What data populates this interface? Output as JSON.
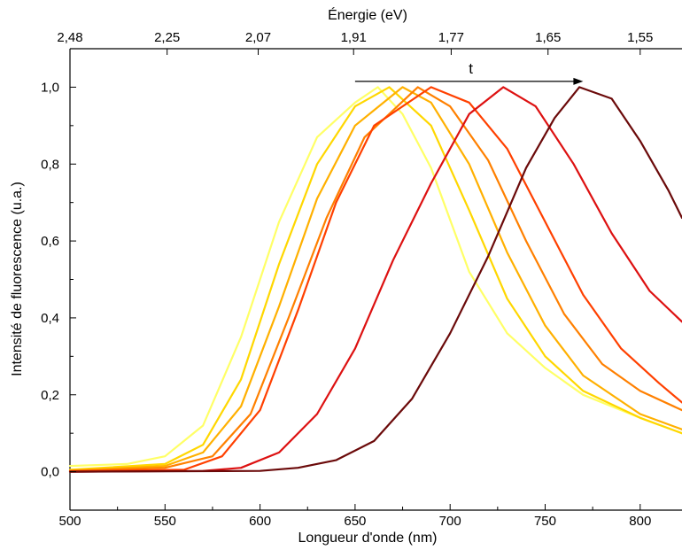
{
  "chart_data": {
    "type": "line",
    "title": "",
    "xlabel": "Longueur d'onde (nm)",
    "ylabel": "Intensité de fluorescence (u.a.)",
    "top_axis_label": "Énergie (eV)",
    "xlim": [
      500,
      822
    ],
    "ylim": [
      -0.1,
      1.1
    ],
    "x_ticks": [
      500,
      550,
      600,
      650,
      700,
      750,
      800
    ],
    "x_tick_labels": [
      "500",
      "550",
      "600",
      "650",
      "700",
      "750",
      "800"
    ],
    "y_ticks": [
      0.0,
      0.2,
      0.4,
      0.6,
      0.8,
      1.0
    ],
    "y_tick_labels": [
      "0,0",
      "0,2",
      "0,4",
      "0,6",
      "0,8",
      "1,0"
    ],
    "top_ticks": [
      2.48,
      2.25,
      2.07,
      1.91,
      1.77,
      1.65,
      1.55
    ],
    "top_tick_labels": [
      "2,48",
      "2,25",
      "2,07",
      "1,91",
      "1,77",
      "1,65",
      "1,55"
    ],
    "grid": false,
    "annotation": {
      "text": "t",
      "arrow_from_x": 650,
      "arrow_to_x": 770,
      "arrow_y": 1.015
    },
    "series": [
      {
        "color": "#ffff66",
        "peak": 662,
        "values": [
          [
            500,
            0.015
          ],
          [
            530,
            0.02
          ],
          [
            550,
            0.04
          ],
          [
            570,
            0.12
          ],
          [
            590,
            0.35
          ],
          [
            610,
            0.65
          ],
          [
            630,
            0.87
          ],
          [
            650,
            0.96
          ],
          [
            662,
            1.0
          ],
          [
            675,
            0.93
          ],
          [
            690,
            0.79
          ],
          [
            710,
            0.52
          ],
          [
            730,
            0.36
          ],
          [
            750,
            0.27
          ],
          [
            770,
            0.2
          ],
          [
            800,
            0.14
          ],
          [
            822,
            0.1
          ]
        ]
      },
      {
        "color": "#ffd700",
        "peak": 668,
        "values": [
          [
            500,
            0.005
          ],
          [
            550,
            0.02
          ],
          [
            570,
            0.07
          ],
          [
            590,
            0.24
          ],
          [
            610,
            0.54
          ],
          [
            630,
            0.8
          ],
          [
            650,
            0.95
          ],
          [
            668,
            1.0
          ],
          [
            690,
            0.9
          ],
          [
            710,
            0.68
          ],
          [
            730,
            0.45
          ],
          [
            750,
            0.3
          ],
          [
            770,
            0.21
          ],
          [
            800,
            0.14
          ],
          [
            822,
            0.1
          ]
        ]
      },
      {
        "color": "#ffb000",
        "peak": 675,
        "values": [
          [
            500,
            0.003
          ],
          [
            550,
            0.015
          ],
          [
            570,
            0.05
          ],
          [
            590,
            0.17
          ],
          [
            610,
            0.43
          ],
          [
            630,
            0.71
          ],
          [
            650,
            0.9
          ],
          [
            675,
            1.0
          ],
          [
            690,
            0.96
          ],
          [
            710,
            0.8
          ],
          [
            730,
            0.57
          ],
          [
            750,
            0.38
          ],
          [
            770,
            0.25
          ],
          [
            800,
            0.15
          ],
          [
            822,
            0.11
          ]
        ]
      },
      {
        "color": "#ff8000",
        "peak": 683,
        "values": [
          [
            500,
            0.002
          ],
          [
            550,
            0.01
          ],
          [
            575,
            0.04
          ],
          [
            595,
            0.15
          ],
          [
            615,
            0.4
          ],
          [
            635,
            0.66
          ],
          [
            655,
            0.87
          ],
          [
            683,
            1.0
          ],
          [
            700,
            0.95
          ],
          [
            720,
            0.81
          ],
          [
            740,
            0.6
          ],
          [
            760,
            0.41
          ],
          [
            780,
            0.28
          ],
          [
            800,
            0.21
          ],
          [
            822,
            0.16
          ]
        ]
      },
      {
        "color": "#ff4000",
        "peak": 690,
        "values": [
          [
            500,
            0.001
          ],
          [
            560,
            0.005
          ],
          [
            580,
            0.04
          ],
          [
            600,
            0.16
          ],
          [
            620,
            0.42
          ],
          [
            640,
            0.7
          ],
          [
            660,
            0.9
          ],
          [
            690,
            1.0
          ],
          [
            710,
            0.96
          ],
          [
            730,
            0.84
          ],
          [
            750,
            0.65
          ],
          [
            770,
            0.46
          ],
          [
            790,
            0.32
          ],
          [
            810,
            0.23
          ],
          [
            822,
            0.18
          ]
        ]
      },
      {
        "color": "#dd1111",
        "peak": 728,
        "values": [
          [
            500,
            0.0
          ],
          [
            570,
            0.002
          ],
          [
            590,
            0.01
          ],
          [
            610,
            0.05
          ],
          [
            630,
            0.15
          ],
          [
            650,
            0.32
          ],
          [
            670,
            0.55
          ],
          [
            690,
            0.75
          ],
          [
            710,
            0.93
          ],
          [
            728,
            1.0
          ],
          [
            745,
            0.95
          ],
          [
            765,
            0.8
          ],
          [
            785,
            0.62
          ],
          [
            805,
            0.47
          ],
          [
            822,
            0.39
          ]
        ]
      },
      {
        "color": "#6b0a0a",
        "peak": 768,
        "values": [
          [
            500,
            0.0
          ],
          [
            600,
            0.002
          ],
          [
            620,
            0.01
          ],
          [
            640,
            0.03
          ],
          [
            660,
            0.08
          ],
          [
            680,
            0.19
          ],
          [
            700,
            0.36
          ],
          [
            720,
            0.56
          ],
          [
            740,
            0.79
          ],
          [
            755,
            0.92
          ],
          [
            768,
            1.0
          ],
          [
            785,
            0.97
          ],
          [
            800,
            0.86
          ],
          [
            815,
            0.73
          ],
          [
            822,
            0.66
          ]
        ]
      }
    ]
  }
}
